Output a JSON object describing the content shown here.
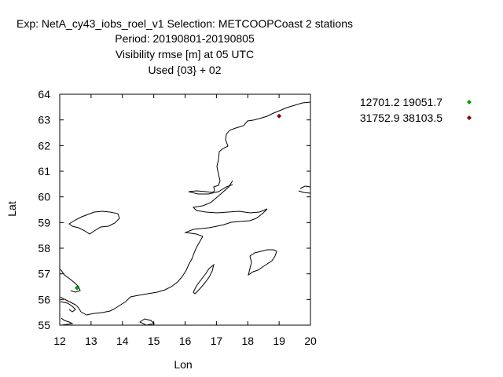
{
  "chart_data": {
    "type": "scatter",
    "title_lines": [
      "Exp: NetA_cy43_iobs_roel_v1   Selection: METCOOPCoast      2 stations",
      "Period: 20190801-20190805",
      "Visibility rmse [m] at  05 UTC",
      "Used {03} + 02"
    ],
    "xlabel": "Lon",
    "ylabel": "Lat",
    "xlim": [
      12,
      20
    ],
    "ylim": [
      55,
      64
    ],
    "xticks": [
      "12",
      "13",
      "14",
      "15",
      "16",
      "17",
      "18",
      "19",
      "20"
    ],
    "yticks": [
      "55",
      "56",
      "57",
      "58",
      "59",
      "60",
      "61",
      "62",
      "63",
      "64"
    ],
    "grid": false,
    "legend_position": "top-right",
    "series": [
      {
        "name": "12701.2 19051.7",
        "color": "#00a000",
        "points": [
          [
            12.55,
            56.45
          ]
        ]
      },
      {
        "name": "31752.9 38103.5",
        "color": "#8b0000",
        "points": [
          [
            19.0,
            63.15
          ]
        ]
      }
    ]
  }
}
